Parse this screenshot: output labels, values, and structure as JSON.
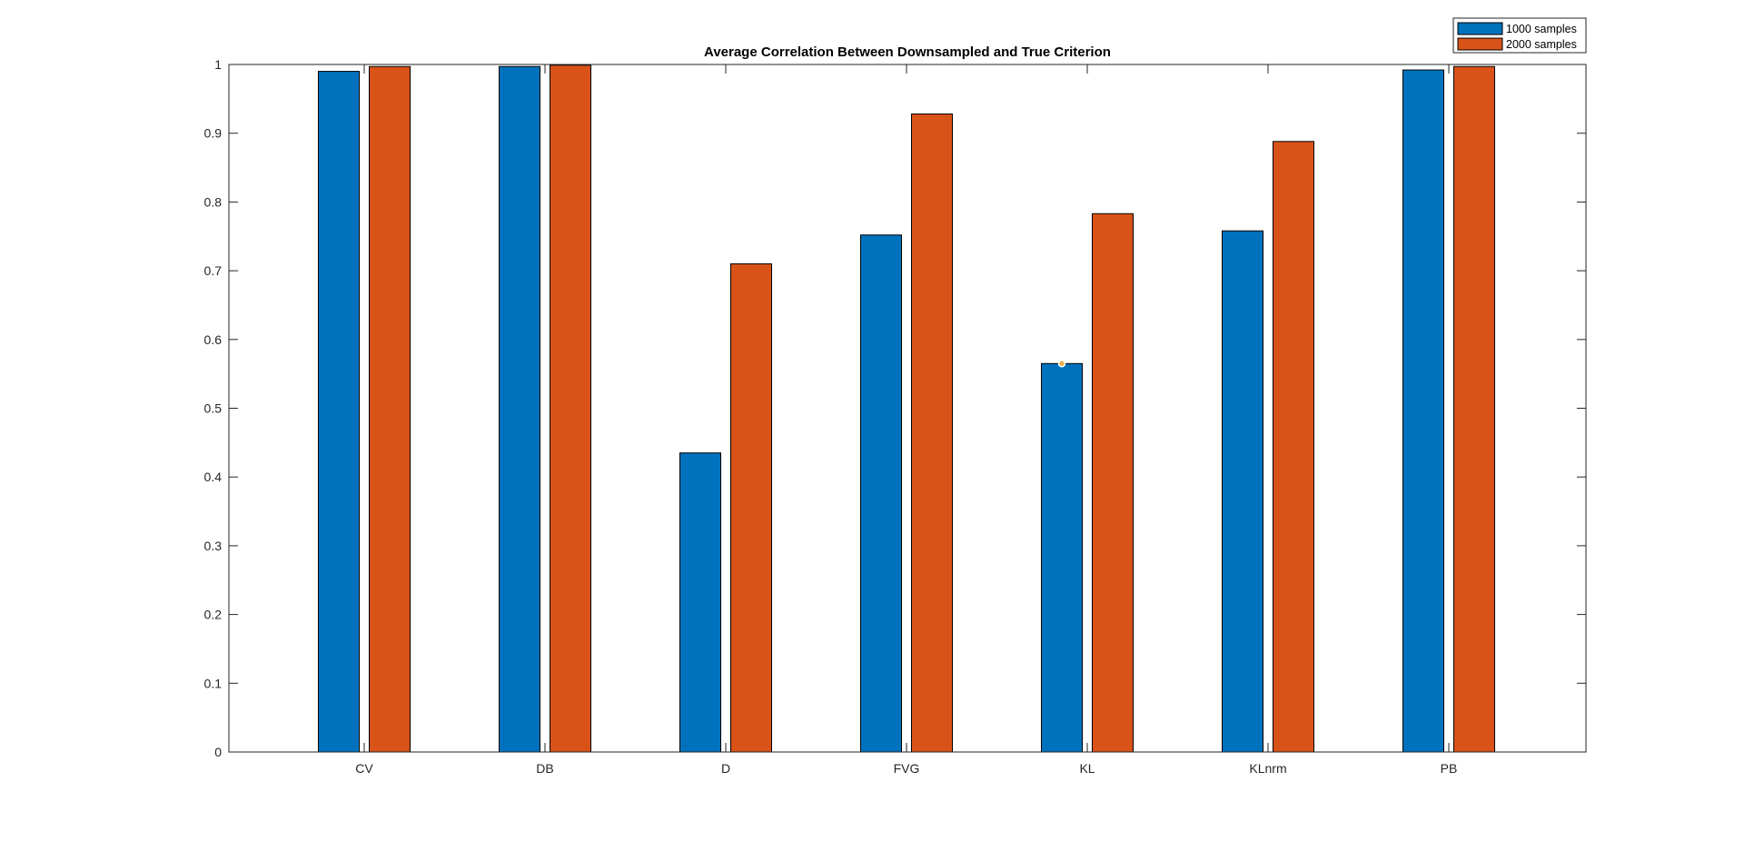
{
  "chart_data": {
    "type": "bar",
    "title": "Average Correlation Between Downsampled and True Criterion",
    "xlabel": "",
    "ylabel": "",
    "categories": [
      "CV",
      "DB",
      "D",
      "FVG",
      "KL",
      "KLnrm",
      "PB"
    ],
    "series": [
      {
        "name": "1000 samples",
        "color": "#0072BD",
        "values": [
          0.99,
          0.997,
          0.435,
          0.752,
          0.565,
          0.758,
          0.992
        ]
      },
      {
        "name": "2000 samples",
        "color": "#D95319",
        "values": [
          0.997,
          0.999,
          0.71,
          0.928,
          0.783,
          0.888,
          0.997
        ]
      }
    ],
    "ylim": [
      0,
      1
    ],
    "yticks": [
      0,
      0.1,
      0.2,
      0.3,
      0.4,
      0.5,
      0.6,
      0.7,
      0.8,
      0.9,
      1
    ],
    "ytick_labels": [
      "0",
      "0.1",
      "0.2",
      "0.3",
      "0.4",
      "0.5",
      "0.6",
      "0.7",
      "0.8",
      "0.9",
      "1"
    ],
    "grid": false,
    "legend_position": "top-right-outside"
  }
}
